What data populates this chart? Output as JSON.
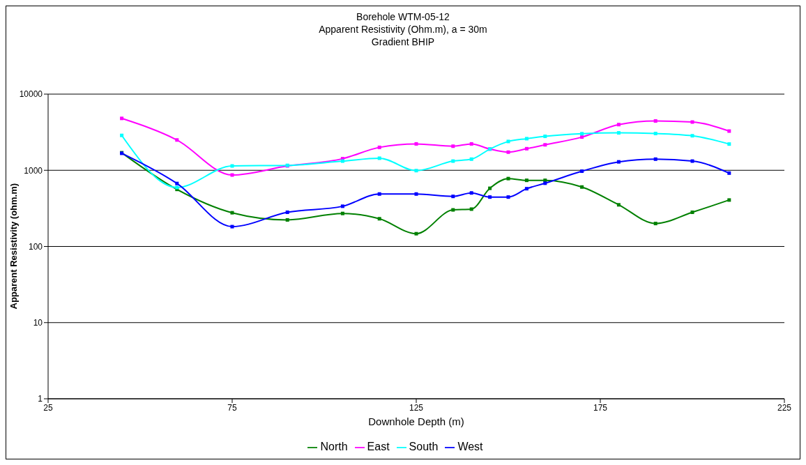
{
  "chart_data": {
    "type": "line",
    "title": "Borehole WTM-05-12",
    "subtitle": "Apparent Resistivity (Ohm.m), a = 30m\nGradient BHIP",
    "xlabel": "Downhole Depth (m)",
    "ylabel": "Apparent Resistivity (ohm.m)",
    "x": [
      45,
      60,
      75,
      90,
      105,
      115,
      125,
      135,
      140,
      145,
      150,
      155,
      160,
      170,
      180,
      190,
      200,
      210
    ],
    "series": [
      {
        "name": "North",
        "color": "#008000",
        "values": [
          1700,
          561,
          277,
          223,
          271,
          231,
          147,
          302,
          309,
          580,
          778,
          738,
          738,
          603,
          352,
          200,
          281,
          407
        ]
      },
      {
        "name": "East",
        "color": "#ff00ff",
        "values": [
          4800,
          2500,
          867,
          1140,
          1420,
          2000,
          2220,
          2070,
          2220,
          1900,
          1730,
          1920,
          2160,
          2730,
          3980,
          4440,
          4300,
          3270
        ]
      },
      {
        "name": "South",
        "color": "#00ffff",
        "values": [
          2870,
          594,
          1140,
          1160,
          1320,
          1440,
          990,
          1320,
          1400,
          1900,
          2390,
          2600,
          2790,
          3020,
          3100,
          3040,
          2840,
          2210
        ]
      },
      {
        "name": "West",
        "color": "#0000ff",
        "values": [
          1670,
          671,
          182,
          281,
          337,
          488,
          488,
          454,
          504,
          445,
          445,
          573,
          676,
          973,
          1290,
          1400,
          1320,
          918
        ]
      }
    ],
    "xlim": [
      25,
      225
    ],
    "xticks": [
      25,
      75,
      125,
      175,
      225
    ],
    "ylim": [
      1,
      10000
    ],
    "yticks": [
      1,
      10,
      100,
      1000,
      10000
    ],
    "log": "y",
    "grid": "y",
    "legend": "bottom",
    "marker": "square",
    "line_style": "solid"
  }
}
